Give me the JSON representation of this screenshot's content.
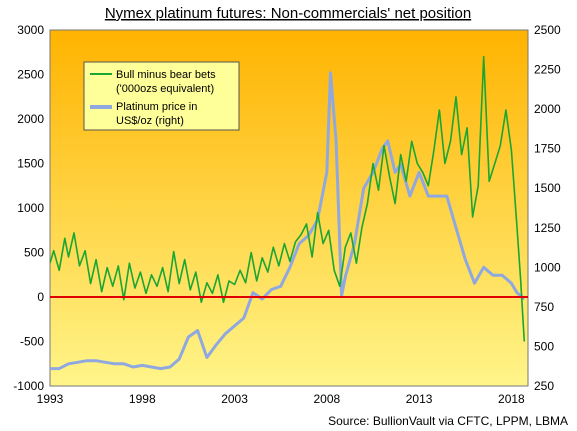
{
  "chart_data": {
    "type": "line",
    "title": "Nymex platinum futures: Non-commercials' net position",
    "source": "Source: BullionVault via CFTC, LPPM, LBMA",
    "x_ticks": [
      "1993",
      "1998",
      "2003",
      "2008",
      "2013",
      "2018"
    ],
    "xlim": [
      1993,
      2018.9
    ],
    "left_axis": {
      "ticks": [
        "-1000",
        "-500",
        "0",
        "500",
        "1000",
        "1500",
        "2000",
        "2500",
        "3000"
      ],
      "ylim": [
        -1000,
        3000
      ]
    },
    "right_axis": {
      "ticks": [
        "250",
        "500",
        "750",
        "1000",
        "1250",
        "1500",
        "1750",
        "2000",
        "2250",
        "2500"
      ],
      "ylim": [
        250,
        2500
      ]
    },
    "zero_line_color": "#e00000",
    "background_gradient": [
      "#ffb300",
      "#fff58a"
    ],
    "series": [
      {
        "name": "Bull minus bear bets ('000ozs equivalent)",
        "axis": "left",
        "color": "#1aa632",
        "x": [
          1993.0,
          1993.2,
          1993.5,
          1993.8,
          1994.0,
          1994.3,
          1994.6,
          1994.9,
          1995.2,
          1995.5,
          1995.8,
          1996.1,
          1996.4,
          1996.7,
          1997.0,
          1997.3,
          1997.6,
          1997.9,
          1998.2,
          1998.5,
          1998.8,
          1999.1,
          1999.4,
          1999.7,
          2000.0,
          2000.3,
          2000.6,
          2000.9,
          2001.2,
          2001.5,
          2001.8,
          2002.1,
          2002.4,
          2002.7,
          2003.0,
          2003.3,
          2003.6,
          2003.9,
          2004.2,
          2004.5,
          2004.8,
          2005.1,
          2005.4,
          2005.7,
          2006.0,
          2006.3,
          2006.6,
          2006.9,
          2007.2,
          2007.5,
          2007.8,
          2008.1,
          2008.4,
          2008.7,
          2009.0,
          2009.3,
          2009.6,
          2009.9,
          2010.2,
          2010.5,
          2010.8,
          2011.1,
          2011.4,
          2011.7,
          2012.0,
          2012.3,
          2012.6,
          2012.9,
          2013.2,
          2013.5,
          2013.8,
          2014.1,
          2014.4,
          2014.7,
          2015.0,
          2015.3,
          2015.6,
          2015.9,
          2016.2,
          2016.5,
          2016.8,
          2017.1,
          2017.4,
          2017.7,
          2018.0,
          2018.3,
          2018.5,
          2018.7
        ],
        "values": [
          380,
          520,
          300,
          660,
          450,
          720,
          350,
          520,
          150,
          420,
          60,
          330,
          120,
          350,
          -30,
          380,
          100,
          280,
          40,
          250,
          120,
          330,
          60,
          510,
          150,
          420,
          80,
          280,
          -60,
          160,
          40,
          250,
          -60,
          180,
          140,
          300,
          160,
          500,
          180,
          440,
          280,
          560,
          350,
          600,
          400,
          620,
          700,
          820,
          450,
          950,
          600,
          750,
          300,
          120,
          560,
          720,
          380,
          780,
          1050,
          1500,
          1200,
          1700,
          1350,
          1050,
          1600,
          1300,
          1750,
          1500,
          1400,
          1250,
          1650,
          2100,
          1500,
          1750,
          2250,
          1600,
          1900,
          900,
          1250,
          2700,
          1300,
          1500,
          1700,
          2100,
          1650,
          800,
          200,
          -500
        ]
      },
      {
        "name": "Platinum price in US$/oz (right)",
        "axis": "right",
        "color": "#8fa8e0",
        "x": [
          1993.0,
          1993.5,
          1994.0,
          1994.5,
          1995.0,
          1995.5,
          1996.0,
          1996.5,
          1997.0,
          1997.5,
          1998.0,
          1998.5,
          1999.0,
          1999.5,
          2000.0,
          2000.5,
          2001.0,
          2001.5,
          2002.0,
          2002.5,
          2003.0,
          2003.5,
          2004.0,
          2004.5,
          2005.0,
          2005.5,
          2006.0,
          2006.5,
          2007.0,
          2007.5,
          2008.0,
          2008.2,
          2008.5,
          2008.8,
          2009.0,
          2009.5,
          2010.0,
          2010.5,
          2011.0,
          2011.3,
          2011.7,
          2012.0,
          2012.5,
          2013.0,
          2013.5,
          2014.0,
          2014.5,
          2015.0,
          2015.5,
          2016.0,
          2016.5,
          2017.0,
          2017.5,
          2018.0,
          2018.3,
          2018.7
        ],
        "values": [
          360,
          360,
          390,
          400,
          410,
          410,
          400,
          390,
          390,
          370,
          380,
          370,
          360,
          370,
          420,
          560,
          600,
          430,
          510,
          580,
          630,
          680,
          840,
          800,
          860,
          880,
          1000,
          1150,
          1200,
          1300,
          1600,
          2230,
          1800,
          820,
          940,
          1150,
          1500,
          1600,
          1750,
          1800,
          1600,
          1650,
          1450,
          1600,
          1450,
          1450,
          1450,
          1250,
          1050,
          900,
          1000,
          950,
          950,
          900,
          840,
          800
        ]
      }
    ]
  }
}
